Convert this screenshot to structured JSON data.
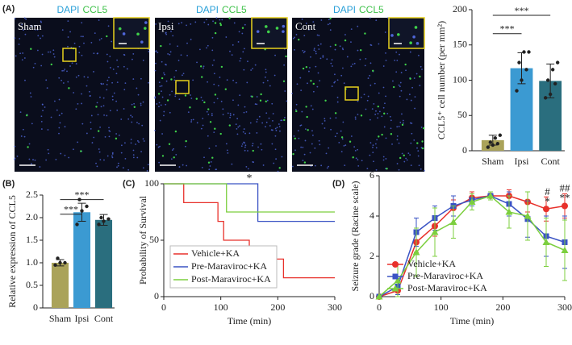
{
  "panel_labels": [
    "(A)",
    "(B)",
    "(C)",
    "(D)"
  ],
  "images": {
    "channels": [
      "DAPI",
      "CCL5"
    ],
    "labels": [
      "Sham",
      "Ipsi",
      "Cont"
    ]
  },
  "chart_data": [
    {
      "type": "bar",
      "ylabel": "CCL5⁺ cell number (per mm²)",
      "categories": [
        "Sham",
        "Ipsi",
        "Cont"
      ],
      "values": [
        15,
        117,
        99
      ],
      "errors": [
        7,
        22,
        24
      ],
      "colors": [
        "#aaa35a",
        "#3b9ad2",
        "#2a6e7e"
      ],
      "points": [
        [
          5,
          8,
          10,
          12,
          18,
          22
        ],
        [
          85,
          100,
          115,
          125,
          140,
          140
        ],
        [
          75,
          80,
          95,
          100,
          115,
          125
        ]
      ],
      "ylim": [
        0,
        200
      ],
      "yticks": [
        0,
        50,
        100,
        150,
        200
      ],
      "significance": [
        "***",
        "***"
      ]
    },
    {
      "type": "bar",
      "ylabel": "Relative expression of CCL5",
      "categories": [
        "Sham",
        "Ipsi",
        "Cont"
      ],
      "values": [
        1.0,
        2.12,
        1.95
      ],
      "errors": [
        0.07,
        0.2,
        0.12
      ],
      "colors": [
        "#aaa35a",
        "#3b9ad2",
        "#2a6e7e"
      ],
      "points": [
        [
          0.95,
          1.0,
          1.0,
          1.1
        ],
        [
          1.85,
          2.15,
          2.25,
          2.4
        ],
        [
          1.85,
          1.92,
          1.97,
          2.0
        ]
      ],
      "ylim": [
        0,
        2.5
      ],
      "yticks": [
        0,
        0.5,
        {
          "value": 1,
          "label": "1.0"
        },
        1.5,
        {
          "value": 2,
          "label": "2.0"
        },
        2.5
      ],
      "significance": [
        "***",
        "***"
      ]
    },
    {
      "type": "step",
      "ylabel": "Probability of Survival",
      "xlabel": "Time (min)",
      "series": [
        {
          "name": "Vehicle+KA",
          "color": "#e8312b",
          "x": [
            0,
            35,
            95,
            105,
            150,
            210,
            300
          ],
          "values": [
            100,
            83.3,
            66.7,
            50,
            33.3,
            16.7,
            16.7
          ]
        },
        {
          "name": "Pre-Maraviroc+KA",
          "color": "#3a53c4",
          "x": [
            0,
            165,
            300
          ],
          "values": [
            100,
            66.7,
            66.7
          ]
        },
        {
          "name": "Post-Maraviroc+KA",
          "color": "#7ccf3e",
          "x": [
            0,
            110,
            300
          ],
          "values": [
            100,
            75,
            75
          ]
        }
      ],
      "xlim": [
        0,
        300
      ],
      "xticks": [
        0,
        100,
        200,
        300
      ],
      "ylim": [
        0,
        100
      ],
      "yticks": [
        0,
        50,
        100
      ],
      "annotations": [
        "*"
      ]
    },
    {
      "type": "line",
      "ylabel": "Seizure grade (Racine scale)",
      "xlabel": "Time (min)",
      "x": [
        0,
        30,
        60,
        90,
        120,
        150,
        180,
        210,
        240,
        270,
        300
      ],
      "series": [
        {
          "name": "Vehicle+KA",
          "color": "#e8312b",
          "marker": "circle",
          "values": [
            0,
            0.3,
            2.7,
            3.5,
            4.4,
            4.9,
            5,
            5,
            4.7,
            4.35,
            4.5
          ],
          "errors": [
            0,
            0.2,
            0.5,
            0.5,
            0.4,
            0.3,
            0.2,
            0.3,
            0.5,
            0.6,
            0.6
          ]
        },
        {
          "name": "Pre-Maraviroc+KA",
          "color": "#3a53c4",
          "marker": "square",
          "values": [
            0,
            0.5,
            3.2,
            3.9,
            4.5,
            4.8,
            5,
            4.6,
            3.85,
            3.0,
            2.7
          ],
          "errors": [
            0,
            0.4,
            0.7,
            0.6,
            0.5,
            0.3,
            0.2,
            0.6,
            0.9,
            1.0,
            1.3
          ]
        },
        {
          "name": "Post-Maraviroc+KA",
          "color": "#7ccf3e",
          "marker": "triangle",
          "values": [
            0,
            0.8,
            2.2,
            3.2,
            3.7,
            4.7,
            5,
            4.2,
            4.0,
            2.7,
            2.3
          ],
          "errors": [
            0,
            0.8,
            1.2,
            1.2,
            0.8,
            0.4,
            0.2,
            0.8,
            1.2,
            1.2,
            1.5
          ]
        }
      ],
      "xlim": [
        0,
        300
      ],
      "xticks": [
        0,
        100,
        200,
        300
      ],
      "ylim": [
        0,
        6
      ],
      "yticks": [
        0,
        2,
        4,
        6
      ],
      "annotations": [
        "#",
        "*",
        "##",
        "**"
      ]
    }
  ]
}
